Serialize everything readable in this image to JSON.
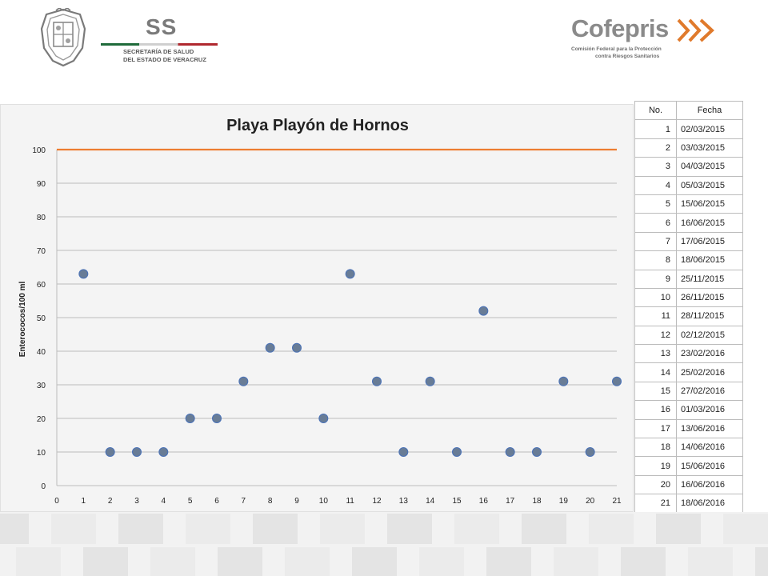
{
  "header": {
    "ss_letters": "SS",
    "ss_line1": "SECRETARÍA DE SALUD",
    "ss_line2": "DEL ESTADO DE VERACRUZ",
    "cofepris_word": "Cofepris",
    "cofepris_sub1": "Comisión Federal para la Protección",
    "cofepris_sub2": "contra Riesgos Sanitarios"
  },
  "colors": {
    "reference_line": "#ed7d31",
    "marker_fill": "#687c96",
    "marker_stroke": "#4a72b8",
    "gridline": "#bdbdbd"
  },
  "chart_data": {
    "type": "scatter",
    "title": "Playa Playón de Hornos",
    "xlabel": "",
    "ylabel": "Enterococos/100 ml",
    "xlim": [
      0,
      21
    ],
    "ylim": [
      0,
      100
    ],
    "x_ticks": [
      0,
      1,
      2,
      3,
      4,
      5,
      6,
      7,
      8,
      9,
      10,
      11,
      12,
      13,
      14,
      15,
      16,
      17,
      18,
      19,
      20,
      21
    ],
    "y_ticks": [
      0,
      10,
      20,
      30,
      40,
      50,
      60,
      70,
      80,
      90,
      100
    ],
    "grid": true,
    "legend": "none",
    "series": [
      {
        "points": [
          {
            "x": 1,
            "y": 63
          },
          {
            "x": 2,
            "y": 10
          },
          {
            "x": 3,
            "y": 10
          },
          {
            "x": 4,
            "y": 10
          },
          {
            "x": 5,
            "y": 20
          },
          {
            "x": 6,
            "y": 20
          },
          {
            "x": 7,
            "y": 31
          },
          {
            "x": 8,
            "y": 41
          },
          {
            "x": 9,
            "y": 41
          },
          {
            "x": 10,
            "y": 20
          },
          {
            "x": 11,
            "y": 63
          },
          {
            "x": 12,
            "y": 31
          },
          {
            "x": 13,
            "y": 10
          },
          {
            "x": 14,
            "y": 31
          },
          {
            "x": 15,
            "y": 10
          },
          {
            "x": 16,
            "y": 52
          },
          {
            "x": 17,
            "y": 10
          },
          {
            "x": 18,
            "y": 10
          },
          {
            "x": 19,
            "y": 31
          },
          {
            "x": 20,
            "y": 10
          },
          {
            "x": 21,
            "y": 31
          }
        ]
      }
    ],
    "reference_line": {
      "type": "line",
      "x": [
        0,
        21
      ],
      "y": [
        100,
        100
      ]
    }
  },
  "table": {
    "headers": [
      "No.",
      "Fecha"
    ],
    "rows": [
      [
        "1",
        "02/03/2015"
      ],
      [
        "2",
        "03/03/2015"
      ],
      [
        "3",
        "04/03/2015"
      ],
      [
        "4",
        "05/03/2015"
      ],
      [
        "5",
        "15/06/2015"
      ],
      [
        "6",
        "16/06/2015"
      ],
      [
        "7",
        "17/06/2015"
      ],
      [
        "8",
        "18/06/2015"
      ],
      [
        "9",
        "25/11/2015"
      ],
      [
        "10",
        "26/11/2015"
      ],
      [
        "11",
        "28/11/2015"
      ],
      [
        "12",
        "02/12/2015"
      ],
      [
        "13",
        "23/02/2016"
      ],
      [
        "14",
        "25/02/2016"
      ],
      [
        "15",
        "27/02/2016"
      ],
      [
        "16",
        "01/03/2016"
      ],
      [
        "17",
        "13/06/2016"
      ],
      [
        "18",
        "14/06/2016"
      ],
      [
        "19",
        "15/06/2016"
      ],
      [
        "20",
        "16/06/2016"
      ],
      [
        "21",
        "18/06/2016"
      ]
    ]
  }
}
